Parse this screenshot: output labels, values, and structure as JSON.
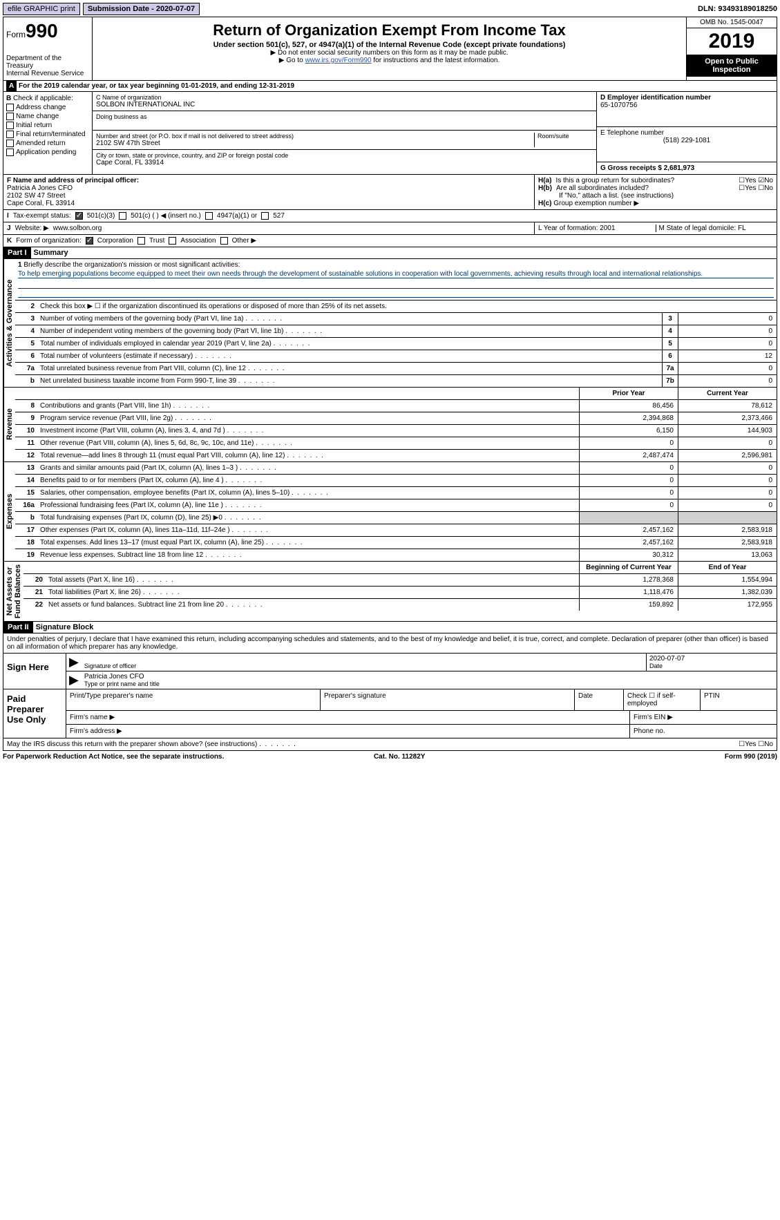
{
  "topbar": {
    "graphic_btn": "efile GRAPHIC print",
    "sub_date_label": "Submission Date - 2020-07-07",
    "dln": "DLN: 93493189018250"
  },
  "header": {
    "form_prefix": "Form",
    "form_number": "990",
    "dept": "Department of the Treasury",
    "irs": "Internal Revenue Service",
    "title": "Return of Organization Exempt From Income Tax",
    "subtitle": "Under section 501(c), 527, or 4947(a)(1) of the Internal Revenue Code (except private foundations)",
    "note1": "▶ Do not enter social security numbers on this form as it may be made public.",
    "note2_pre": "▶ Go to ",
    "note2_link": "www.irs.gov/Form990",
    "note2_post": " for instructions and the latest information.",
    "omb": "OMB No. 1545-0047",
    "year": "2019",
    "open": "Open to Public Inspection"
  },
  "period": {
    "bar_a": "A",
    "text": "For the 2019 calendar year, or tax year beginning 01-01-2019",
    "ending": ", and ending 12-31-2019"
  },
  "b": {
    "label": "B",
    "check_label": "Check if applicable:",
    "items": [
      "Address change",
      "Name change",
      "Initial return",
      "Final return/terminated",
      "Amended return",
      "Application pending"
    ]
  },
  "c": {
    "name_label": "C Name of organization",
    "name": "SOLBON INTERNATIONAL INC",
    "dba_label": "Doing business as",
    "street_label": "Number and street (or P.O. box if mail is not delivered to street address)",
    "room_label": "Room/suite",
    "street": "2102 SW 47th Street",
    "city_label": "City or town, state or province, country, and ZIP or foreign postal code",
    "city": "Cape Coral, FL  33914"
  },
  "d": {
    "label": "D Employer identification number",
    "value": "65-1070756"
  },
  "e": {
    "label": "E Telephone number",
    "value": "(518) 229-1081"
  },
  "g": {
    "label": "G Gross receipts $ 2,681,973"
  },
  "f": {
    "label": "F  Name and address of principal officer:",
    "name": "Patricia A Jones CFO",
    "addr1": "2102 SW 47 Street",
    "addr2": "Cape Coral, FL  33914"
  },
  "h": {
    "a_label": "H(a)",
    "a_text": "Is this a group return for subordinates?",
    "b_label": "H(b)",
    "b_text": "Are all subordinates included?",
    "b_note": "If \"No,\" attach a list. (see instructions)",
    "c_label": "H(c)",
    "c_text": "Group exemption number ▶",
    "yes": "Yes",
    "no": "No"
  },
  "i": {
    "label": "I",
    "text": "Tax-exempt status:",
    "opts": [
      "501(c)(3)",
      "501(c) (  ) ◀ (insert no.)",
      "4947(a)(1) or",
      "527"
    ]
  },
  "j": {
    "label": "J",
    "text": "Website: ▶",
    "value": "www.solbon.org"
  },
  "k": {
    "label": "K",
    "text": "Form of organization:",
    "opts": [
      "Corporation",
      "Trust",
      "Association",
      "Other ▶"
    ]
  },
  "l": {
    "label": "L Year of formation: 2001"
  },
  "m": {
    "label": "M State of legal domicile: FL"
  },
  "part1": {
    "hdr": "Part I",
    "title": "Summary"
  },
  "vlabels": {
    "ag": "Activities & Governance",
    "rev": "Revenue",
    "exp": "Expenses",
    "na": "Net Assets or\nFund Balances"
  },
  "ag": {
    "r1_num": "1",
    "r1_label": "Briefly describe the organization's mission or most significant activities:",
    "r1_text": "To help emerging populations become equipped to meet their own needs through the development of sustainable solutions in cooperation with local governments, achieving results through local and international relationships.",
    "r2_num": "2",
    "r2": "Check this box ▶ ☐  if the organization discontinued its operations or disposed of more than 25% of its net assets.",
    "r3_num": "3",
    "r3": "Number of voting members of the governing body (Part VI, line 1a)",
    "r3_box": "3",
    "r3_val": "0",
    "r4_num": "4",
    "r4": "Number of independent voting members of the governing body (Part VI, line 1b)",
    "r4_box": "4",
    "r4_val": "0",
    "r5_num": "5",
    "r5": "Total number of individuals employed in calendar year 2019 (Part V, line 2a)",
    "r5_box": "5",
    "r5_val": "0",
    "r6_num": "6",
    "r6": "Total number of volunteers (estimate if necessary)",
    "r6_box": "6",
    "r6_val": "12",
    "r7a_num": "7a",
    "r7a": "Total unrelated business revenue from Part VIII, column (C), line 12",
    "r7a_box": "7a",
    "r7a_val": "0",
    "r7b_num": "b",
    "r7b": "Net unrelated business taxable income from Form 990-T, line 39",
    "r7b_box": "7b",
    "r7b_val": "0"
  },
  "cols": {
    "prior": "Prior Year",
    "current": "Current Year",
    "begin": "Beginning of Current Year",
    "end": "End of Year"
  },
  "rev": [
    {
      "n": "8",
      "t": "Contributions and grants (Part VIII, line 1h)",
      "p": "86,456",
      "c": "78,612"
    },
    {
      "n": "9",
      "t": "Program service revenue (Part VIII, line 2g)",
      "p": "2,394,868",
      "c": "2,373,466"
    },
    {
      "n": "10",
      "t": "Investment income (Part VIII, column (A), lines 3, 4, and 7d )",
      "p": "6,150",
      "c": "144,903"
    },
    {
      "n": "11",
      "t": "Other revenue (Part VIII, column (A), lines 5, 6d, 8c, 9c, 10c, and 11e)",
      "p": "0",
      "c": "0"
    },
    {
      "n": "12",
      "t": "Total revenue—add lines 8 through 11 (must equal Part VIII, column (A), line 12)",
      "p": "2,487,474",
      "c": "2,596,981"
    }
  ],
  "exp": [
    {
      "n": "13",
      "t": "Grants and similar amounts paid (Part IX, column (A), lines 1–3 )",
      "p": "0",
      "c": "0"
    },
    {
      "n": "14",
      "t": "Benefits paid to or for members (Part IX, column (A), line 4 )",
      "p": "0",
      "c": "0"
    },
    {
      "n": "15",
      "t": "Salaries, other compensation, employee benefits (Part IX, column (A), lines 5–10)",
      "p": "0",
      "c": "0"
    },
    {
      "n": "16a",
      "t": "Professional fundraising fees (Part IX, column (A), line 11e )",
      "p": "0",
      "c": "0"
    },
    {
      "n": "b",
      "t": "Total fundraising expenses (Part IX, column (D), line 25) ▶0",
      "p": "",
      "c": "",
      "gray": true
    },
    {
      "n": "17",
      "t": "Other expenses (Part IX, column (A), lines 11a–11d, 11f–24e )",
      "p": "2,457,162",
      "c": "2,583,918"
    },
    {
      "n": "18",
      "t": "Total expenses. Add lines 13–17 (must equal Part IX, column (A), line 25)",
      "p": "2,457,162",
      "c": "2,583,918"
    },
    {
      "n": "19",
      "t": "Revenue less expenses. Subtract line 18 from line 12",
      "p": "30,312",
      "c": "13,063"
    }
  ],
  "na": [
    {
      "n": "20",
      "t": "Total assets (Part X, line 16)",
      "p": "1,278,368",
      "c": "1,554,994"
    },
    {
      "n": "21",
      "t": "Total liabilities (Part X, line 26)",
      "p": "1,118,476",
      "c": "1,382,039"
    },
    {
      "n": "22",
      "t": "Net assets or fund balances. Subtract line 21 from line 20",
      "p": "159,892",
      "c": "172,955"
    }
  ],
  "part2": {
    "hdr": "Part II",
    "title": "Signature Block"
  },
  "sig": {
    "penalty": "Under penalties of perjury, I declare that I have examined this return, including accompanying schedules and statements, and to the best of my knowledge and belief, it is true, correct, and complete. Declaration of preparer (other than officer) is based on all information of which preparer has any knowledge.",
    "sign_here": "Sign Here",
    "date": "2020-07-07",
    "sig_of": "Signature of officer",
    "date_lbl": "Date",
    "name": "Patricia Jones  CFO",
    "name_lbl": "Type or print name and title"
  },
  "prep": {
    "label": "Paid Preparer Use Only",
    "c1": "Print/Type preparer's name",
    "c2": "Preparer's signature",
    "c3": "Date",
    "c4": "Check ☐ if self-employed",
    "c5": "PTIN",
    "r2a": "Firm's name   ▶",
    "r2b": "Firm's EIN ▶",
    "r3a": "Firm's address ▶",
    "r3b": "Phone no."
  },
  "discuss": {
    "text": "May the IRS discuss this return with the preparer shown above? (see instructions)",
    "yes": "Yes",
    "no": "No"
  },
  "footer": {
    "l": "For Paperwork Reduction Act Notice, see the separate instructions.",
    "c": "Cat. No. 11282Y",
    "r": "Form 990 (2019)"
  }
}
